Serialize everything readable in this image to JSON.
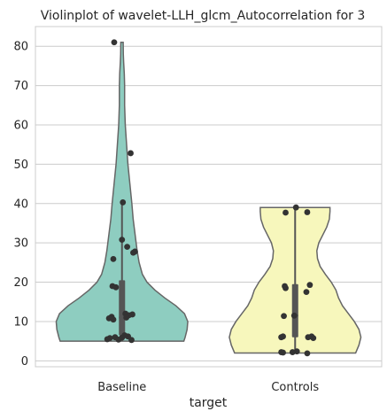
{
  "chart_data": {
    "type": "violin",
    "title": "Violinplot of wavelet-LLH_glcm_Autocorrelation for 3",
    "xlabel": "target",
    "ylabel": "",
    "ylim": [
      -1.5,
      85
    ],
    "yticks": [
      0,
      10,
      20,
      30,
      40,
      50,
      60,
      70,
      80
    ],
    "grid": true,
    "categories": [
      "Baseline",
      "Controls"
    ],
    "violins": [
      {
        "name": "Baseline",
        "color": "#8ecdc0",
        "range": [
          5,
          81
        ],
        "quartiles": [
          6.5,
          20.5
        ],
        "median": 11,
        "whiskers": [
          5,
          40
        ],
        "density": [
          [
            5,
            0.94
          ],
          [
            6,
            0.96
          ],
          [
            8,
            0.99
          ],
          [
            10,
            1.0
          ],
          [
            12,
            0.95
          ],
          [
            14,
            0.82
          ],
          [
            16,
            0.65
          ],
          [
            18,
            0.5
          ],
          [
            20,
            0.38
          ],
          [
            22,
            0.31
          ],
          [
            25,
            0.26
          ],
          [
            28,
            0.23
          ],
          [
            32,
            0.2
          ],
          [
            36,
            0.17
          ],
          [
            40,
            0.15
          ],
          [
            45,
            0.12
          ],
          [
            50,
            0.09
          ],
          [
            55,
            0.07
          ],
          [
            60,
            0.05
          ],
          [
            65,
            0.04
          ],
          [
            70,
            0.04
          ],
          [
            73,
            0.035
          ],
          [
            76,
            0.025
          ],
          [
            78,
            0.02
          ],
          [
            81,
            0.018
          ]
        ],
        "points": [
          [
            -0.09,
            81
          ],
          [
            0.1,
            52.8
          ],
          [
            0.01,
            40.3
          ],
          [
            0.0,
            30.8
          ],
          [
            0.06,
            29
          ],
          [
            0.15,
            27.8
          ],
          [
            0.13,
            27.5
          ],
          [
            -0.1,
            25.9
          ],
          [
            -0.11,
            19
          ],
          [
            -0.07,
            18.7
          ],
          [
            0.04,
            12
          ],
          [
            0.12,
            11.8
          ],
          [
            0.08,
            11.6
          ],
          [
            -0.12,
            11.2
          ],
          [
            -0.15,
            10.8
          ],
          [
            -0.1,
            10.5
          ],
          [
            0.05,
            11.0
          ],
          [
            0.07,
            6.2
          ],
          [
            -0.08,
            6
          ],
          [
            -0.14,
            5.8
          ],
          [
            -0.17,
            5.5
          ],
          [
            0.11,
            5.3
          ],
          [
            0.03,
            6.5
          ],
          [
            -0.04,
            5.4
          ],
          [
            0.0,
            5.9
          ]
        ]
      },
      {
        "name": "Controls",
        "color": "#f7f7bc",
        "range": [
          2,
          39
        ],
        "quartiles": [
          6,
          19.5
        ],
        "median": 11.5,
        "whiskers": [
          2,
          39
        ],
        "density": [
          [
            2,
            0.92
          ],
          [
            4,
            0.97
          ],
          [
            6,
            1.0
          ],
          [
            8,
            0.97
          ],
          [
            10,
            0.9
          ],
          [
            12,
            0.81
          ],
          [
            14,
            0.72
          ],
          [
            16,
            0.66
          ],
          [
            18,
            0.62
          ],
          [
            20,
            0.55
          ],
          [
            22,
            0.46
          ],
          [
            24,
            0.38
          ],
          [
            26,
            0.34
          ],
          [
            28,
            0.33
          ],
          [
            30,
            0.36
          ],
          [
            32,
            0.42
          ],
          [
            34,
            0.48
          ],
          [
            36,
            0.52
          ],
          [
            38,
            0.53
          ],
          [
            39,
            0.53
          ]
        ],
        "points": [
          [
            0.01,
            39
          ],
          [
            0.14,
            37.8
          ],
          [
            -0.11,
            37.7
          ],
          [
            0.17,
            19.3
          ],
          [
            -0.12,
            19
          ],
          [
            -0.11,
            18.5
          ],
          [
            0.13,
            17.5
          ],
          [
            -0.01,
            11.5
          ],
          [
            -0.13,
            11.4
          ],
          [
            0.19,
            6.2
          ],
          [
            0.15,
            6.0
          ],
          [
            -0.16,
            6
          ],
          [
            -0.14,
            6.2
          ],
          [
            0.21,
            5.8
          ],
          [
            0.02,
            2.4
          ],
          [
            -0.16,
            2.2
          ],
          [
            -0.14,
            2.1
          ],
          [
            0.14,
            1.9
          ],
          [
            -0.03,
            2.2
          ]
        ]
      }
    ]
  }
}
